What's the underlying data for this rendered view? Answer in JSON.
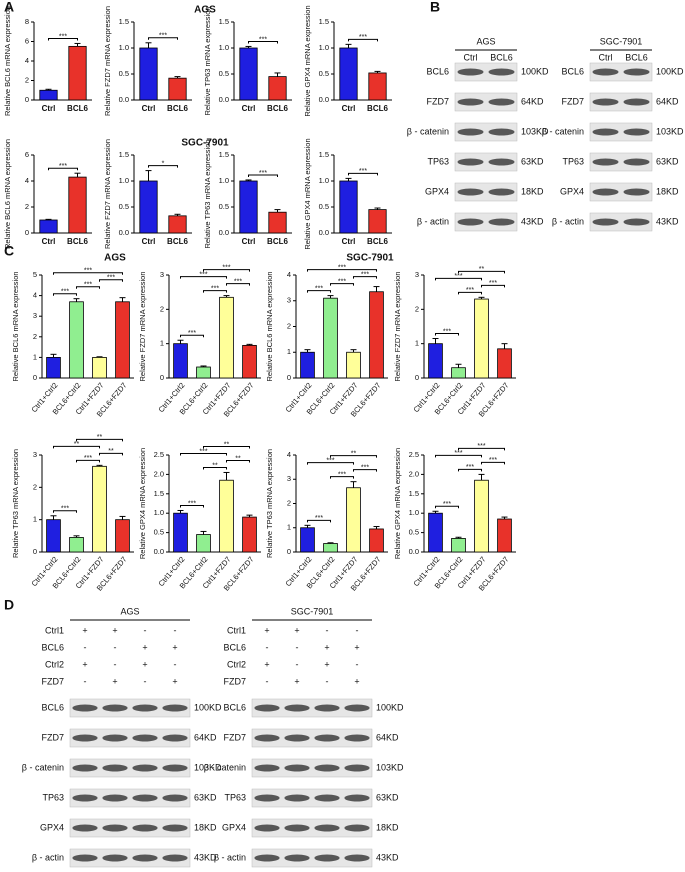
{
  "panel_labels": [
    "A",
    "B",
    "C",
    "D"
  ],
  "headers_a": [
    "AGS",
    "SGC-7901"
  ],
  "headers_c": [
    "AGS",
    "SGC-7901"
  ],
  "chart_data": [
    {
      "type": "bar",
      "ylabel": "Relative BCL6 mRNA expression",
      "categories": [
        "Ctrl",
        "BCL6"
      ],
      "colors": [
        "#1f1fe0",
        "#e8322a"
      ],
      "values": [
        1.0,
        5.5
      ],
      "errors": [
        0.1,
        0.3
      ],
      "ylim": [
        0,
        8
      ],
      "yticks": [
        0,
        2,
        4,
        6,
        8
      ],
      "annotations": [
        {
          "text": "***",
          "bars": [
            0,
            1
          ]
        }
      ]
    },
    {
      "type": "bar",
      "ylabel": "Relative FZD7 mRNA expression",
      "categories": [
        "Ctrl",
        "BCL6"
      ],
      "colors": [
        "#1f1fe0",
        "#e8322a"
      ],
      "values": [
        1.0,
        0.42
      ],
      "errors": [
        0.1,
        0.03
      ],
      "ylim": [
        0,
        1.5
      ],
      "yticks": [
        {
          "value": 0,
          "label": "0.0"
        },
        {
          "value": 0.5,
          "label": "0.5"
        },
        {
          "value": 1,
          "label": "1.0"
        },
        {
          "value": 1.5,
          "label": "1.5"
        }
      ],
      "annotations": [
        {
          "text": "***",
          "bars": [
            0,
            1
          ]
        }
      ]
    },
    {
      "type": "bar",
      "ylabel": "Relative TP63 mRNA expression",
      "categories": [
        "Ctrl",
        "BCL6"
      ],
      "colors": [
        "#1f1fe0",
        "#e8322a"
      ],
      "values": [
        1.0,
        0.45
      ],
      "errors": [
        0.03,
        0.07
      ],
      "ylim": [
        0,
        1.5
      ],
      "yticks": [
        {
          "value": 0,
          "label": "0.0"
        },
        {
          "value": 0.5,
          "label": "0.5"
        },
        {
          "value": 1,
          "label": "1.0"
        },
        {
          "value": 1.5,
          "label": "1.5"
        }
      ],
      "annotations": [
        {
          "text": "***",
          "bars": [
            0,
            1
          ]
        }
      ]
    },
    {
      "type": "bar",
      "ylabel": "Relative GPX4 mRNA expression",
      "categories": [
        "Ctrl",
        "BCL6"
      ],
      "colors": [
        "#1f1fe0",
        "#e8322a"
      ],
      "values": [
        1.0,
        0.52
      ],
      "errors": [
        0.07,
        0.03
      ],
      "ylim": [
        0,
        1.5
      ],
      "yticks": [
        {
          "value": 0,
          "label": "0.0"
        },
        {
          "value": 0.5,
          "label": "0.5"
        },
        {
          "value": 1,
          "label": "1.0"
        },
        {
          "value": 1.5,
          "label": "1.5"
        }
      ],
      "annotations": [
        {
          "text": "***",
          "bars": [
            0,
            1
          ]
        }
      ]
    },
    {
      "type": "bar",
      "ylabel": "Relative BCL6 mRNA expression",
      "categories": [
        "Ctrl",
        "BCL6"
      ],
      "colors": [
        "#1f1fe0",
        "#e8322a"
      ],
      "values": [
        1.0,
        4.3
      ],
      "errors": [
        0.05,
        0.3
      ],
      "ylim": [
        0,
        6
      ],
      "yticks": [
        0,
        2,
        4,
        6
      ],
      "annotations": [
        {
          "text": "***",
          "bars": [
            0,
            1
          ]
        }
      ]
    },
    {
      "type": "bar",
      "ylabel": "Relative FZD7 mRNA expression",
      "categories": [
        "Ctrl",
        "BCL6"
      ],
      "colors": [
        "#1f1fe0",
        "#e8322a"
      ],
      "values": [
        1.0,
        0.33
      ],
      "errors": [
        0.2,
        0.03
      ],
      "ylim": [
        0,
        1.5
      ],
      "yticks": [
        {
          "value": 0,
          "label": "0.0"
        },
        {
          "value": 0.5,
          "label": "0.5"
        },
        {
          "value": 1,
          "label": "1.0"
        },
        {
          "value": 1.5,
          "label": "1.5"
        }
      ],
      "annotations": [
        {
          "text": "*",
          "bars": [
            0,
            1
          ]
        }
      ]
    },
    {
      "type": "bar",
      "ylabel": "Relative TP63 mRNA expression",
      "categories": [
        "Ctrl",
        "BCL6"
      ],
      "colors": [
        "#1f1fe0",
        "#e8322a"
      ],
      "values": [
        1.0,
        0.4
      ],
      "errors": [
        0.02,
        0.05
      ],
      "ylim": [
        0,
        1.5
      ],
      "yticks": [
        {
          "value": 0,
          "label": "0.0"
        },
        {
          "value": 0.5,
          "label": "0.5"
        },
        {
          "value": 1,
          "label": "1.0"
        },
        {
          "value": 1.5,
          "label": "1.5"
        }
      ],
      "annotations": [
        {
          "text": "***",
          "bars": [
            0,
            1
          ]
        }
      ]
    },
    {
      "type": "bar",
      "ylabel": "Relative GPX4 mRNA expression",
      "categories": [
        "Ctrl",
        "BCL6"
      ],
      "colors": [
        "#1f1fe0",
        "#e8322a"
      ],
      "values": [
        1.0,
        0.45
      ],
      "errors": [
        0.05,
        0.03
      ],
      "ylim": [
        0,
        1.5
      ],
      "yticks": [
        {
          "value": 0,
          "label": "0.0"
        },
        {
          "value": 0.5,
          "label": "0.5"
        },
        {
          "value": 1,
          "label": "1.0"
        },
        {
          "value": 1.5,
          "label": "1.5"
        }
      ],
      "annotations": [
        {
          "text": "***",
          "bars": [
            0,
            1
          ]
        }
      ]
    },
    {
      "type": "bar",
      "ylabel": "Relative BCL6 mRNA expression",
      "categories": [
        "Ctrl1+Ctrl2",
        "BCL6+Ctrl2",
        "Ctrl1+FZD7",
        "BCL6+FZD7"
      ],
      "colors": [
        "#1f1fe0",
        "#90ee90",
        "#ffff99",
        "#e8322a"
      ],
      "values": [
        1.0,
        3.7,
        1.0,
        3.7
      ],
      "errors": [
        0.15,
        0.15,
        0.03,
        0.2
      ],
      "ylim": [
        0,
        5
      ],
      "yticks": [
        0,
        1,
        2,
        3,
        4,
        5
      ],
      "annotations": [
        {
          "text": "***",
          "bars": [
            0,
            1
          ]
        },
        {
          "text": "***",
          "bars": [
            1,
            2
          ]
        },
        {
          "text": "***",
          "bars": [
            2,
            3
          ]
        },
        {
          "text": "***",
          "bars": [
            0,
            3
          ]
        }
      ]
    },
    {
      "type": "bar",
      "ylabel": "Relative FZD7 mRNA expression",
      "categories": [
        "Ctrl1+Ctrl2",
        "BCL6+Ctrl2",
        "Ctrl1+FZD7",
        "BCL6+FZD7"
      ],
      "colors": [
        "#1f1fe0",
        "#90ee90",
        "#ffff99",
        "#e8322a"
      ],
      "values": [
        1.0,
        0.32,
        2.35,
        0.95
      ],
      "errors": [
        0.1,
        0.03,
        0.05,
        0.03
      ],
      "ylim": [
        0,
        3
      ],
      "yticks": [
        0,
        1,
        2,
        3
      ],
      "annotations": [
        {
          "text": "***",
          "bars": [
            0,
            1
          ]
        },
        {
          "text": "***",
          "bars": [
            1,
            2
          ]
        },
        {
          "text": "***",
          "bars": [
            2,
            3
          ]
        },
        {
          "text": "***",
          "bars": [
            0,
            2
          ]
        },
        {
          "text": "***",
          "bars": [
            1,
            3
          ]
        }
      ]
    },
    {
      "type": "bar",
      "ylabel": "Relative BCL6 mRNA expression",
      "categories": [
        "Ctrl1+Ctrl2",
        "BCL6+Ctrl2",
        "Ctrl1+FZD7",
        "BCL6+FZD7"
      ],
      "colors": [
        "#1f1fe0",
        "#90ee90",
        "#ffff99",
        "#e8322a"
      ],
      "values": [
        1.0,
        3.1,
        1.0,
        3.35
      ],
      "errors": [
        0.1,
        0.1,
        0.1,
        0.2
      ],
      "ylim": [
        0,
        4
      ],
      "yticks": [
        0,
        1,
        2,
        3,
        4
      ],
      "annotations": [
        {
          "text": "***",
          "bars": [
            0,
            1
          ]
        },
        {
          "text": "***",
          "bars": [
            1,
            2
          ]
        },
        {
          "text": "***",
          "bars": [
            2,
            3
          ]
        },
        {
          "text": "***",
          "bars": [
            0,
            3
          ]
        }
      ]
    },
    {
      "type": "bar",
      "ylabel": "Relative FZD7 mRNA expression",
      "categories": [
        "Ctrl1+Ctrl2",
        "BCL6+Ctrl2",
        "Ctrl1+FZD7",
        "BCL6+FZD7"
      ],
      "colors": [
        "#1f1fe0",
        "#90ee90",
        "#ffff99",
        "#e8322a"
      ],
      "values": [
        1.0,
        0.3,
        2.3,
        0.85
      ],
      "errors": [
        0.15,
        0.1,
        0.05,
        0.15
      ],
      "ylim": [
        0,
        3
      ],
      "yticks": [
        0,
        1,
        2,
        3
      ],
      "annotations": [
        {
          "text": "***",
          "bars": [
            0,
            1
          ]
        },
        {
          "text": "***",
          "bars": [
            1,
            2
          ]
        },
        {
          "text": "***",
          "bars": [
            2,
            3
          ]
        },
        {
          "text": "***",
          "bars": [
            0,
            2
          ]
        },
        {
          "text": "**",
          "bars": [
            1,
            3
          ]
        }
      ]
    },
    {
      "type": "bar",
      "ylabel": "Relative TP63 mRNA expression",
      "categories": [
        "Ctrl1+Ctrl2",
        "BCL6+Ctrl2",
        "Ctrl1+FZD7",
        "BCL6+FZD7"
      ],
      "colors": [
        "#1f1fe0",
        "#90ee90",
        "#ffff99",
        "#e8322a"
      ],
      "values": [
        1.0,
        0.45,
        2.65,
        1.0
      ],
      "errors": [
        0.12,
        0.05,
        0.03,
        0.1
      ],
      "ylim": [
        0,
        3
      ],
      "yticks": [
        0,
        1,
        2,
        3
      ],
      "annotations": [
        {
          "text": "***",
          "bars": [
            0,
            1
          ]
        },
        {
          "text": "***",
          "bars": [
            1,
            2
          ]
        },
        {
          "text": "**",
          "bars": [
            2,
            3
          ]
        },
        {
          "text": "**",
          "bars": [
            0,
            2
          ]
        },
        {
          "text": "**",
          "bars": [
            1,
            3
          ]
        }
      ]
    },
    {
      "type": "bar",
      "ylabel": "Relative GPX4 mRNA expression",
      "categories": [
        "Ctrl1+Ctrl2",
        "BCL6+Ctrl2",
        "Ctrl1+FZD7",
        "BCL6+FZD7"
      ],
      "colors": [
        "#1f1fe0",
        "#90ee90",
        "#ffff99",
        "#e8322a"
      ],
      "values": [
        1.0,
        0.45,
        1.85,
        0.9
      ],
      "errors": [
        0.07,
        0.08,
        0.2,
        0.05
      ],
      "ylim": [
        0,
        2.5
      ],
      "yticks": [
        {
          "value": 0,
          "label": "0.0"
        },
        {
          "value": 0.5,
          "label": "0.5"
        },
        {
          "value": 1,
          "label": "1.0"
        },
        {
          "value": 1.5,
          "label": "1.5"
        },
        {
          "value": 2,
          "label": "2.0"
        },
        {
          "value": 2.5,
          "label": "2.5"
        }
      ],
      "annotations": [
        {
          "text": "***",
          "bars": [
            0,
            1
          ]
        },
        {
          "text": "**",
          "bars": [
            1,
            2
          ]
        },
        {
          "text": "**",
          "bars": [
            2,
            3
          ]
        },
        {
          "text": "***",
          "bars": [
            0,
            2
          ]
        },
        {
          "text": "**",
          "bars": [
            1,
            3
          ]
        }
      ]
    },
    {
      "type": "bar",
      "ylabel": "Relative TP63 mRNA expression",
      "categories": [
        "Ctrl1+Ctrl2",
        "BCL6+Ctrl2",
        "Ctrl1+FZD7",
        "BCL6+FZD7"
      ],
      "colors": [
        "#1f1fe0",
        "#90ee90",
        "#ffff99",
        "#e8322a"
      ],
      "values": [
        1.0,
        0.35,
        2.65,
        0.95
      ],
      "errors": [
        0.1,
        0.03,
        0.25,
        0.1
      ],
      "ylim": [
        0,
        4
      ],
      "yticks": [
        0,
        1,
        2,
        3,
        4
      ],
      "annotations": [
        {
          "text": "***",
          "bars": [
            0,
            1
          ]
        },
        {
          "text": "***",
          "bars": [
            1,
            2
          ]
        },
        {
          "text": "***",
          "bars": [
            2,
            3
          ]
        },
        {
          "text": "***",
          "bars": [
            0,
            2
          ]
        },
        {
          "text": "**",
          "bars": [
            1,
            3
          ]
        }
      ]
    },
    {
      "type": "bar",
      "ylabel": "Relative GPX4 mRNA expression",
      "categories": [
        "Ctrl1+Ctrl2",
        "BCL6+Ctrl2",
        "Ctrl1+FZD7",
        "BCL6+FZD7"
      ],
      "colors": [
        "#1f1fe0",
        "#90ee90",
        "#ffff99",
        "#e8322a"
      ],
      "values": [
        1.0,
        0.35,
        1.85,
        0.85
      ],
      "errors": [
        0.05,
        0.03,
        0.15,
        0.05
      ],
      "ylim": [
        0,
        2.5
      ],
      "yticks": [
        {
          "value": 0,
          "label": "0.0"
        },
        {
          "value": 0.5,
          "label": "0.5"
        },
        {
          "value": 1,
          "label": "1.0"
        },
        {
          "value": 1.5,
          "label": "1.5"
        },
        {
          "value": 2,
          "label": "2.0"
        },
        {
          "value": 2.5,
          "label": "2.5"
        }
      ],
      "annotations": [
        {
          "text": "***",
          "bars": [
            0,
            1
          ]
        },
        {
          "text": "***",
          "bars": [
            1,
            2
          ]
        },
        {
          "text": "***",
          "bars": [
            2,
            3
          ]
        },
        {
          "text": "***",
          "bars": [
            0,
            2
          ]
        },
        {
          "text": "***",
          "bars": [
            1,
            3
          ]
        }
      ]
    }
  ],
  "blots_b": [
    {
      "title": "AGS",
      "lanes": [
        "Ctrl",
        "BCL6"
      ],
      "rows": [
        {
          "label": "BCL6",
          "size": "100KD"
        },
        {
          "label": "FZD7",
          "size": "64KD"
        },
        {
          "label": "β - catenin",
          "size": "103KD"
        },
        {
          "label": "TP63",
          "size": "63KD"
        },
        {
          "label": "GPX4",
          "size": "18KD"
        },
        {
          "label": "β - actin",
          "size": "43KD"
        }
      ]
    },
    {
      "title": "SGC-7901",
      "lanes": [
        "Ctrl",
        "BCL6"
      ],
      "rows": [
        {
          "label": "BCL6",
          "size": "100KD"
        },
        {
          "label": "FZD7",
          "size": "64KD"
        },
        {
          "label": "β - catenin",
          "size": "103KD"
        },
        {
          "label": "TP63",
          "size": "63KD"
        },
        {
          "label": "GPX4",
          "size": "18KD"
        },
        {
          "label": "β - actin",
          "size": "43KD"
        }
      ]
    }
  ],
  "blots_d": [
    {
      "title": "AGS",
      "conditions": [
        {
          "label": "Ctrl1",
          "signs": [
            "+",
            "+",
            "-",
            "-"
          ]
        },
        {
          "label": "BCL6",
          "signs": [
            "-",
            "-",
            "+",
            "+"
          ]
        },
        {
          "label": "Ctrl2",
          "signs": [
            "+",
            "-",
            "+",
            "-"
          ]
        },
        {
          "label": "FZD7",
          "signs": [
            "-",
            "+",
            "-",
            "+"
          ]
        }
      ],
      "rows": [
        {
          "label": "BCL6",
          "size": "100KD"
        },
        {
          "label": "FZD7",
          "size": "64KD"
        },
        {
          "label": "β - catenin",
          "size": "103KD"
        },
        {
          "label": "TP63",
          "size": "63KD"
        },
        {
          "label": "GPX4",
          "size": "18KD"
        },
        {
          "label": "β - actin",
          "size": "43KD"
        }
      ]
    },
    {
      "title": "SGC-7901",
      "conditions": [
        {
          "label": "Ctrl1",
          "signs": [
            "+",
            "+",
            "-",
            "-"
          ]
        },
        {
          "label": "BCL6",
          "signs": [
            "-",
            "-",
            "+",
            "+"
          ]
        },
        {
          "label": "Ctrl2",
          "signs": [
            "+",
            "-",
            "+",
            "-"
          ]
        },
        {
          "label": "FZD7",
          "signs": [
            "-",
            "+",
            "-",
            "+"
          ]
        }
      ],
      "rows": [
        {
          "label": "BCL6",
          "size": "100KD"
        },
        {
          "label": "FZD7",
          "size": "64KD"
        },
        {
          "label": "β - catenin",
          "size": "103KD"
        },
        {
          "label": "TP63",
          "size": "63KD"
        },
        {
          "label": "GPX4",
          "size": "18KD"
        },
        {
          "label": "β - actin",
          "size": "43KD"
        }
      ]
    }
  ]
}
